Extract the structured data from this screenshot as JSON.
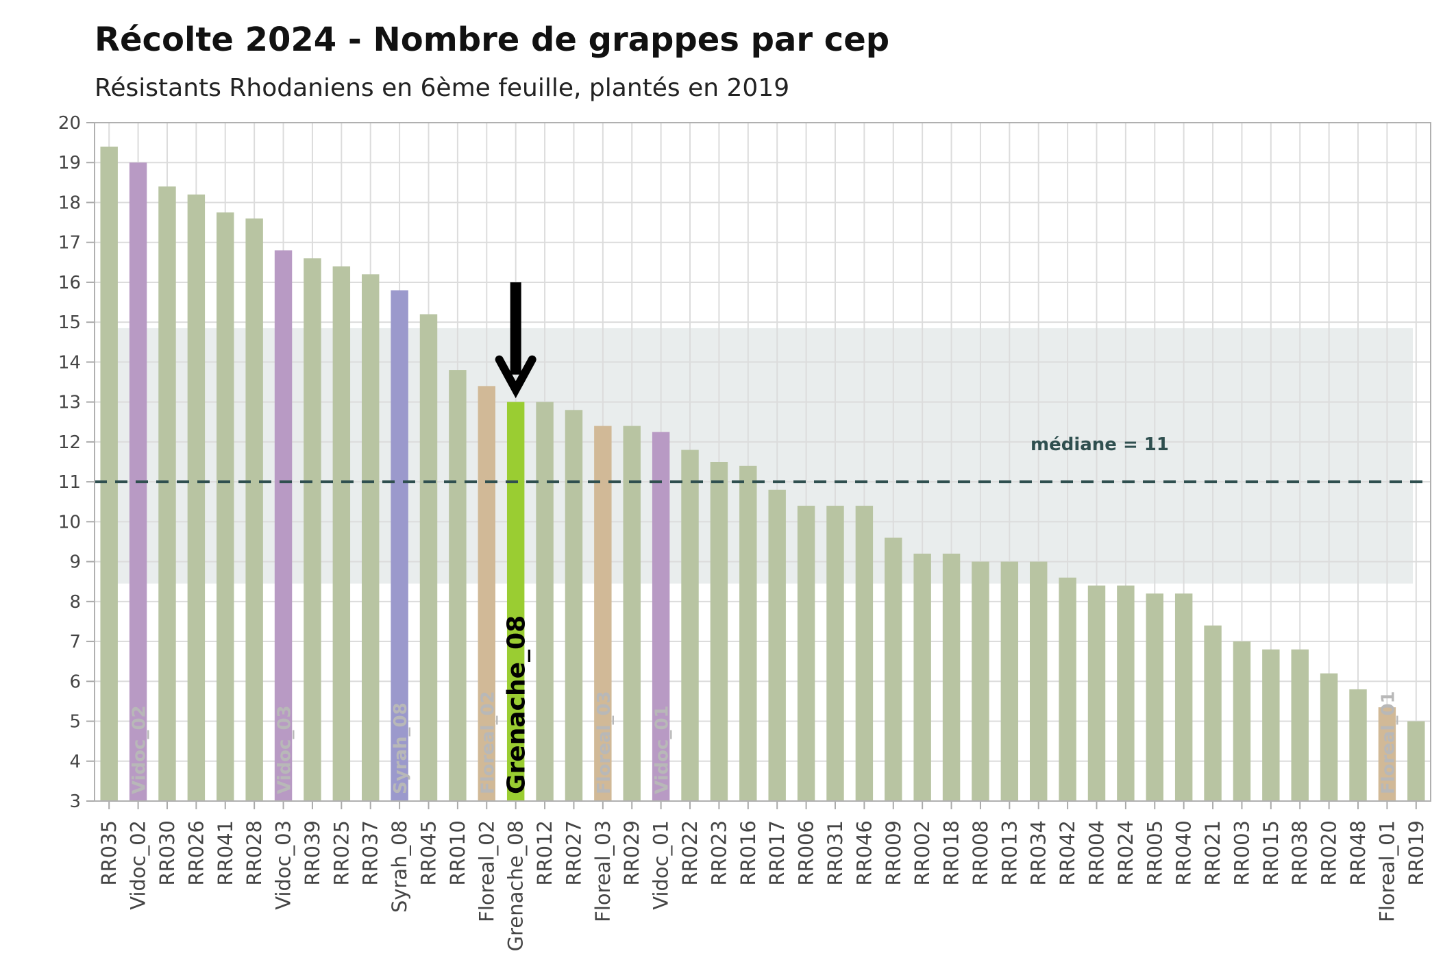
{
  "chart_data": {
    "type": "bar",
    "title": "Récolte 2024 - Nombre de grappes par cep",
    "subtitle": "Résistants Rhodaniens en 6ème feuille, plantés en 2019",
    "xlabel": "",
    "ylabel": "",
    "ylim": [
      3,
      20
    ],
    "yticks": [
      3,
      4,
      5,
      6,
      7,
      8,
      9,
      10,
      11,
      12,
      13,
      14,
      15,
      16,
      17,
      18,
      19,
      20
    ],
    "grid": true,
    "categories": [
      "RR035",
      "Vidoc_02",
      "RR030",
      "RR026",
      "RR041",
      "RR028",
      "Vidoc_03",
      "RR039",
      "RR025",
      "RR037",
      "Syrah_08",
      "RR045",
      "RR010",
      "Floreal_02",
      "Grenache_08",
      "RR012",
      "RR027",
      "Floreal_03",
      "RR029",
      "Vidoc_01",
      "RR022",
      "RR023",
      "RR016",
      "RR017",
      "RR006",
      "RR031",
      "RR046",
      "RR009",
      "RR002",
      "RR018",
      "RR008",
      "RR013",
      "RR034",
      "RR042",
      "RR004",
      "RR024",
      "RR005",
      "RR040",
      "RR021",
      "RR003",
      "RR015",
      "RR038",
      "RR020",
      "RR048",
      "Floreal_01",
      "RR019"
    ],
    "values": [
      19.4,
      19.0,
      18.4,
      18.2,
      17.75,
      17.6,
      16.8,
      16.6,
      16.4,
      16.2,
      15.8,
      15.2,
      13.8,
      13.4,
      13.0,
      13.0,
      12.8,
      12.4,
      12.4,
      12.25,
      11.8,
      11.5,
      11.4,
      10.8,
      10.4,
      10.4,
      10.4,
      9.6,
      9.2,
      9.2,
      9.0,
      9.0,
      9.0,
      8.6,
      8.4,
      8.4,
      8.2,
      8.2,
      7.4,
      7.0,
      6.8,
      6.8,
      6.2,
      5.8,
      5.35,
      5.0
    ],
    "bar_colors": {
      "default": "#b8c4a2",
      "Vidoc": "#b89ac4",
      "Syrah": "#9b99cc",
      "Floreal": "#d1b997",
      "highlight": "#9acd32"
    },
    "in_bar_labels": [
      "Vidoc_02",
      "Vidoc_03",
      "Syrah_08",
      "Floreal_02",
      "Grenache_08",
      "Floreal_03",
      "Vidoc_01",
      "Floreal_01"
    ],
    "highlight": "Grenache_08",
    "median": {
      "value": 11,
      "label": "médiane = 11",
      "color": "#2f4f4f"
    },
    "band": {
      "range": [
        8.45,
        14.85
      ],
      "color": "#e9eded"
    }
  }
}
